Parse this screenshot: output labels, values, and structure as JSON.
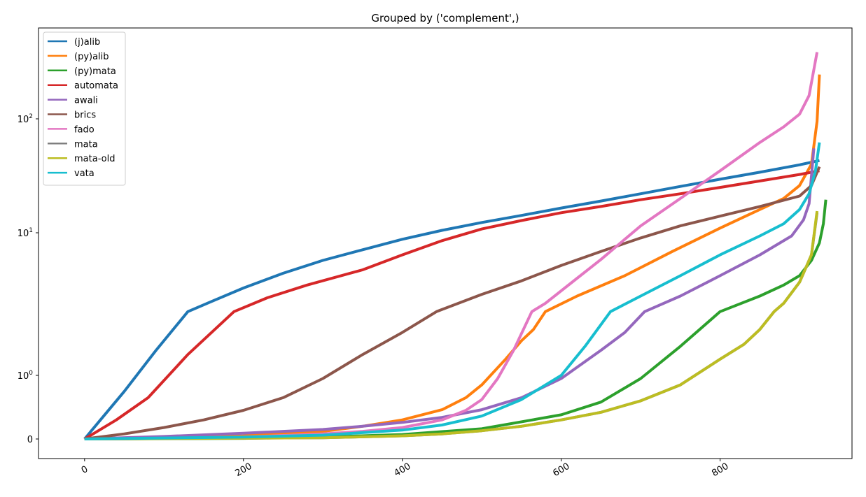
{
  "chart_data": {
    "type": "line",
    "title": "Grouped by ('complement',)",
    "xlabel": "",
    "ylabel": "",
    "y_scale": "symlog",
    "xlim": [
      -58,
      966
    ],
    "x_ticks": [
      0,
      200,
      400,
      600,
      800
    ],
    "x_tick_labels": [
      "0",
      "200",
      "400",
      "600",
      "800"
    ],
    "x_tick_rotation": 30,
    "y_ticks": [
      0,
      1,
      10,
      100
    ],
    "y_tick_labels": [
      "0",
      "10^0",
      "10^1",
      "10^2"
    ],
    "grid": false,
    "legend_position": "upper-left",
    "series": [
      {
        "name": "(j)alib",
        "color": "#1f77b4",
        "x": [
          0,
          20,
          50,
          90,
          130,
          160,
          200,
          250,
          300,
          350,
          400,
          450,
          500,
          550,
          600,
          650,
          700,
          750,
          800,
          850,
          900,
          925
        ],
        "y": [
          0,
          0.3,
          0.75,
          1.5,
          2.8,
          3.3,
          4.1,
          5.2,
          6.4,
          7.6,
          9.0,
          10.5,
          12.3,
          14.2,
          16.5,
          19.0,
          22.0,
          25.5,
          29.5,
          34.0,
          39.5,
          43.0
        ]
      },
      {
        "name": "(py)alib",
        "color": "#ff7f0e",
        "x": [
          0,
          100,
          200,
          300,
          350,
          400,
          450,
          480,
          500,
          530,
          550,
          565,
          580,
          620,
          680,
          740,
          800,
          850,
          880,
          900,
          915,
          922,
          925
        ],
        "y": [
          0,
          0.02,
          0.05,
          0.12,
          0.2,
          0.3,
          0.46,
          0.65,
          0.85,
          1.3,
          1.75,
          2.1,
          2.8,
          3.6,
          5.0,
          7.4,
          11.0,
          16.0,
          20.0,
          26.0,
          40.0,
          95.0,
          245.0
        ]
      },
      {
        "name": "(py)mata",
        "color": "#2ca02c",
        "x": [
          0,
          200,
          300,
          400,
          500,
          600,
          650,
          700,
          750,
          800,
          850,
          880,
          900,
          915,
          925,
          930,
          933
        ],
        "y": [
          0,
          0.01,
          0.03,
          0.07,
          0.16,
          0.38,
          0.58,
          0.95,
          1.6,
          2.8,
          3.6,
          4.3,
          5.0,
          6.4,
          8.5,
          12.0,
          19.5
        ]
      },
      {
        "name": "automata",
        "color": "#d62728",
        "x": [
          0,
          40,
          80,
          130,
          188,
          230,
          280,
          350,
          400,
          450,
          500,
          550,
          600,
          650,
          700,
          750,
          800,
          850,
          900,
          925
        ],
        "y": [
          0,
          0.3,
          0.65,
          1.4,
          2.8,
          3.5,
          4.3,
          5.5,
          7.0,
          8.8,
          10.8,
          12.8,
          15.0,
          17.0,
          19.5,
          22.0,
          25.0,
          28.5,
          32.5,
          35.0
        ]
      },
      {
        "name": "awali",
        "color": "#9467bd",
        "x": [
          0,
          100,
          200,
          300,
          350,
          400,
          450,
          500,
          550,
          600,
          650,
          680,
          705,
          750,
          800,
          850,
          890,
          905,
          912,
          918
        ],
        "y": [
          0,
          0.04,
          0.09,
          0.15,
          0.2,
          0.26,
          0.34,
          0.46,
          0.65,
          0.95,
          1.5,
          2.0,
          2.8,
          3.6,
          5.0,
          7.0,
          9.5,
          13.0,
          18.0,
          55.0
        ]
      },
      {
        "name": "brics",
        "color": "#8c564b",
        "x": [
          0,
          50,
          100,
          150,
          200,
          250,
          300,
          350,
          400,
          443,
          500,
          550,
          600,
          650,
          700,
          750,
          800,
          850,
          900,
          915,
          925
        ],
        "y": [
          0,
          0.08,
          0.18,
          0.3,
          0.45,
          0.65,
          0.95,
          1.4,
          2.0,
          2.8,
          3.7,
          4.6,
          5.9,
          7.4,
          9.2,
          11.5,
          14.0,
          17.0,
          21.0,
          26.0,
          38.0
        ]
      },
      {
        "name": "fado",
        "color": "#e377c2",
        "x": [
          0,
          100,
          200,
          300,
          350,
          400,
          450,
          480,
          500,
          520,
          540,
          563,
          580,
          620,
          650,
          700,
          750,
          800,
          850,
          880,
          900,
          912,
          922
        ],
        "y": [
          0,
          0.01,
          0.03,
          0.08,
          0.12,
          0.18,
          0.3,
          0.45,
          0.62,
          0.95,
          1.5,
          2.8,
          3.2,
          4.8,
          6.5,
          11.5,
          20.0,
          35.0,
          62.0,
          85.0,
          110.0,
          160.0,
          385.0
        ]
      },
      {
        "name": "mata",
        "color": "#7f7f7f",
        "x": [
          0,
          300,
          400,
          450,
          500,
          550,
          600,
          650,
          700,
          750,
          800,
          830,
          850,
          868,
          880,
          900,
          915,
          922
        ],
        "y": [
          0,
          0.02,
          0.05,
          0.08,
          0.13,
          0.2,
          0.3,
          0.42,
          0.6,
          0.85,
          1.3,
          1.65,
          2.1,
          2.8,
          3.2,
          4.5,
          7.0,
          15.0
        ]
      },
      {
        "name": "mata-old",
        "color": "#bcbd22",
        "x": [
          0,
          300,
          400,
          450,
          500,
          550,
          600,
          650,
          700,
          750,
          800,
          830,
          850,
          868,
          880,
          900,
          915,
          922
        ],
        "y": [
          0,
          0.02,
          0.05,
          0.08,
          0.13,
          0.2,
          0.3,
          0.42,
          0.6,
          0.85,
          1.3,
          1.65,
          2.1,
          2.8,
          3.2,
          4.5,
          7.0,
          15.5
        ]
      },
      {
        "name": "vata",
        "color": "#17becf",
        "x": [
          0,
          200,
          300,
          400,
          450,
          500,
          550,
          600,
          630,
          662,
          700,
          750,
          800,
          850,
          880,
          900,
          912,
          920,
          925
        ],
        "y": [
          0,
          0.03,
          0.06,
          0.14,
          0.22,
          0.36,
          0.62,
          1.0,
          1.6,
          2.8,
          3.6,
          5.0,
          7.0,
          9.5,
          12.0,
          16.0,
          22.0,
          35.0,
          62.0
        ]
      }
    ]
  }
}
